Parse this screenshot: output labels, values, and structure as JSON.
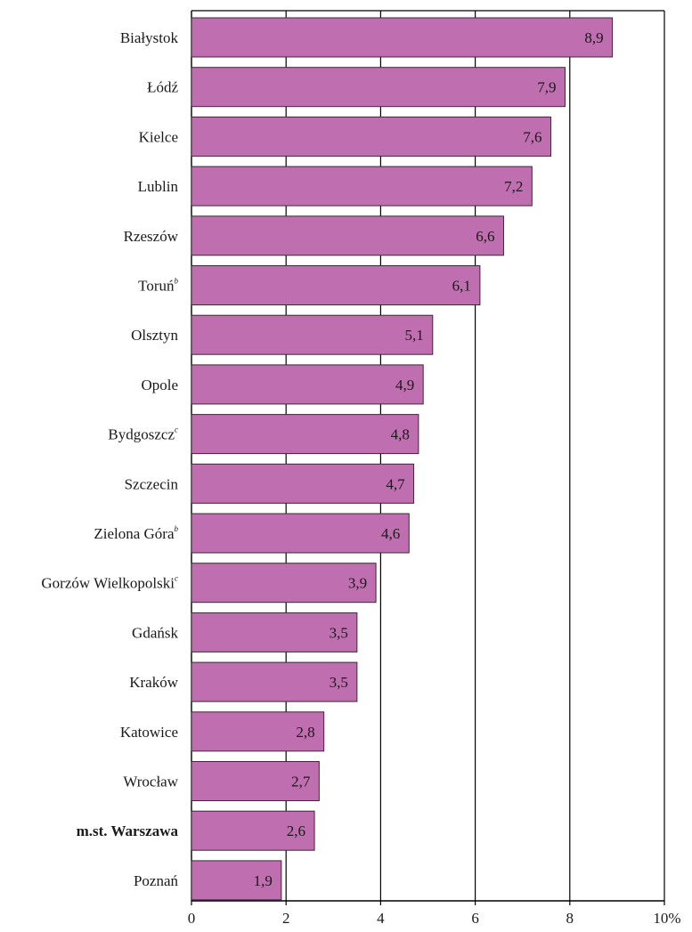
{
  "chart_data": {
    "type": "bar",
    "orientation": "horizontal",
    "categories": [
      "Białystok",
      "Łódź",
      "Kielce",
      "Lublin",
      "Rzeszów",
      "Toruń",
      "Olsztyn",
      "Opole",
      "Bydgoszcz",
      "Szczecin",
      "Zielona Góra",
      "Gorzów Wielkopolski",
      "Gdańsk",
      "Kraków",
      "Katowice",
      "Wrocław",
      "m.st. Warszawa",
      "Poznań"
    ],
    "footnotes": [
      "",
      "",
      "",
      "",
      "",
      "b",
      "",
      "",
      "c",
      "",
      "b",
      "c",
      "",
      "",
      "",
      "",
      "",
      ""
    ],
    "bold": [
      false,
      false,
      false,
      false,
      false,
      false,
      false,
      false,
      false,
      false,
      false,
      false,
      false,
      false,
      false,
      false,
      true,
      false
    ],
    "values": [
      8.9,
      7.9,
      7.6,
      7.2,
      6.6,
      6.1,
      5.1,
      4.9,
      4.8,
      4.7,
      4.6,
      3.9,
      3.5,
      3.5,
      2.8,
      2.7,
      2.6,
      1.9
    ],
    "value_labels": [
      "8,9",
      "7,9",
      "7,6",
      "7,2",
      "6,6",
      "6,1",
      "5,1",
      "4,9",
      "4,8",
      "4,7",
      "4,6",
      "3,9",
      "3,5",
      "3,5",
      "2,8",
      "2,7",
      "2,6",
      "1,9"
    ],
    "xlim": [
      0,
      10
    ],
    "xticks": [
      0,
      2,
      4,
      6,
      8,
      10
    ],
    "xtick_labels": [
      "0",
      "2",
      "4",
      "6",
      "8",
      "10%"
    ],
    "grid": "vertical",
    "legend": "none",
    "colors": {
      "bar": "#bf6eaf",
      "bar_border": "#3a2a35",
      "grid": "#000000"
    }
  }
}
